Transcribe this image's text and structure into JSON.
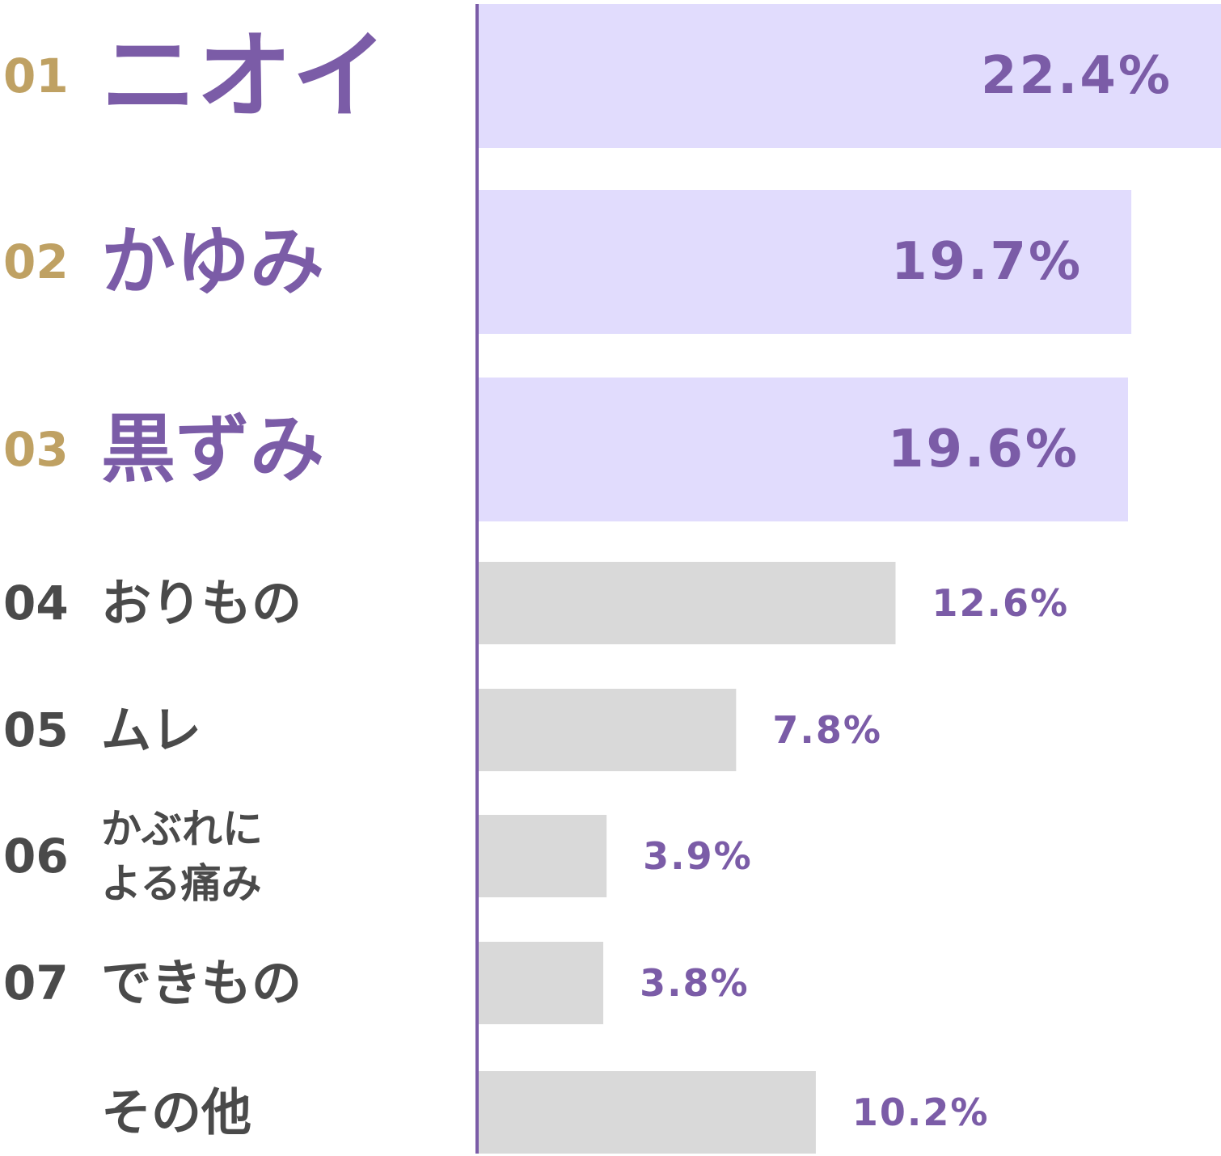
{
  "colors": {
    "accent": "#7b5ca7",
    "rank_top": "#bfa163",
    "rank_other": "#4a4a4a",
    "label_other": "#4a4a4a",
    "bar_top": "#e1dcfd",
    "bar_other": "#d9d9d9",
    "axis": "#7b5ca7"
  },
  "chart_data": {
    "type": "bar",
    "orientation": "horizontal",
    "xlim": [
      0,
      22.4
    ],
    "grid": false,
    "categories": [
      {
        "rank": "01",
        "label": [
          "ニオイ"
        ],
        "value": 22.4,
        "value_label": "22.4%",
        "highlight": true
      },
      {
        "rank": "02",
        "label": [
          "かゆみ"
        ],
        "value": 19.7,
        "value_label": "19.7%",
        "highlight": true
      },
      {
        "rank": "03",
        "label": [
          "黒ずみ"
        ],
        "value": 19.6,
        "value_label": "19.6%",
        "highlight": true
      },
      {
        "rank": "04",
        "label": [
          "おりもの"
        ],
        "value": 12.6,
        "value_label": "12.6%",
        "highlight": false
      },
      {
        "rank": "05",
        "label": [
          "ムレ"
        ],
        "value": 7.8,
        "value_label": "7.8%",
        "highlight": false
      },
      {
        "rank": "06",
        "label": [
          "かぶれに",
          "よる痛み"
        ],
        "value": 3.9,
        "value_label": "3.9%",
        "highlight": false
      },
      {
        "rank": "07",
        "label": [
          "できもの"
        ],
        "value": 3.8,
        "value_label": "3.8%",
        "highlight": false
      },
      {
        "rank": "",
        "label": [
          "その他"
        ],
        "value": 10.2,
        "value_label": "10.2%",
        "highlight": false
      }
    ]
  }
}
